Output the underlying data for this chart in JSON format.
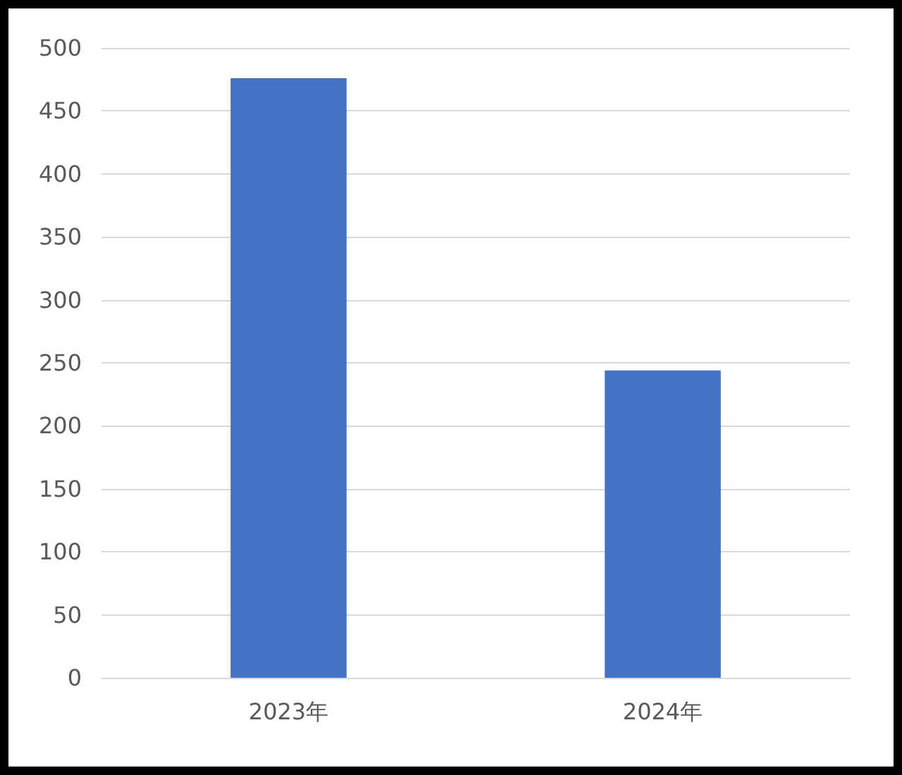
{
  "chart_data": {
    "type": "bar",
    "categories": [
      "2023年",
      "2024年"
    ],
    "values": [
      476,
      244
    ],
    "color": "#4472c4",
    "ylim": [
      0,
      500
    ],
    "yticks": [
      0,
      50,
      100,
      150,
      200,
      250,
      300,
      350,
      400,
      450,
      500
    ],
    "grid": "y"
  }
}
